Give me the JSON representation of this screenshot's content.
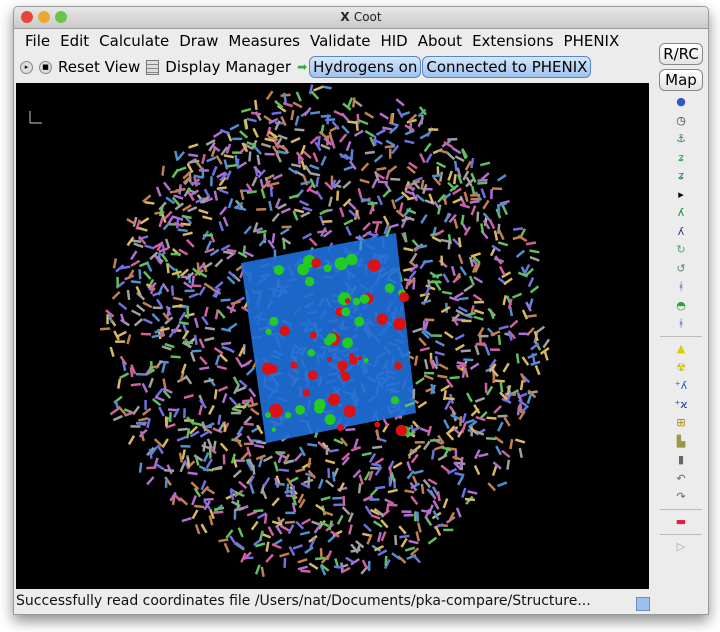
{
  "window": {
    "title": "Coot"
  },
  "menu": [
    "File",
    "Edit",
    "Calculate",
    "Draw",
    "Measures",
    "Validate",
    "HID",
    "About",
    "Extensions",
    "PHENIX"
  ],
  "toolbar": {
    "reset_view": "Reset View",
    "display_manager": "Display Manager",
    "hydrogens": "Hydrogens on",
    "phenix": "Connected to PHENIX"
  },
  "side": {
    "rrc": "R/RC",
    "map": "Map",
    "icons": [
      {
        "name": "refine-sphere-icon",
        "glyph": "●",
        "color": "#3355cc"
      },
      {
        "name": "clock-icon",
        "glyph": "◷",
        "color": "#333"
      },
      {
        "name": "anchor-icon",
        "glyph": "⚓",
        "color": "#2a7a6a"
      },
      {
        "name": "rigid-body-icon",
        "glyph": "ʑ",
        "color": "#22aa44"
      },
      {
        "name": "regularize-icon",
        "glyph": "ʑ",
        "color": "#2a7a6a"
      },
      {
        "name": "expand-arrow-icon",
        "glyph": "▸",
        "color": "#000"
      },
      {
        "name": "add-residue-icon",
        "glyph": "ʎ",
        "color": "#118833"
      },
      {
        "name": "mutate-icon",
        "glyph": "ʎ",
        "color": "#223399"
      },
      {
        "name": "rotamer-icon",
        "glyph": "↻",
        "color": "#44aa66"
      },
      {
        "name": "torsion-icon",
        "glyph": "↺",
        "color": "#668866"
      },
      {
        "name": "flip-peptide-icon",
        "glyph": "ᚼ",
        "color": "#2255bb"
      },
      {
        "name": "side-chain-icon",
        "glyph": "◓",
        "color": "#22aa33"
      },
      {
        "name": "cis-trans-icon",
        "glyph": "ᚼ",
        "color": "#2255bb"
      },
      {
        "name": "sep"
      },
      {
        "name": "add-water-icon",
        "glyph": "▲",
        "color": "#ddcc00"
      },
      {
        "name": "radiation-icon",
        "glyph": "☢",
        "color": "#ccbb00"
      },
      {
        "name": "add-atom-icon",
        "glyph": "⁺ʎ",
        "color": "#2255bb"
      },
      {
        "name": "delete-atom-icon",
        "glyph": "⁺ϰ",
        "color": "#223399"
      },
      {
        "name": "box-plus-icon",
        "glyph": "⊞",
        "color": "#aa8800"
      },
      {
        "name": "stamp-icon",
        "glyph": "▙",
        "color": "#999944"
      },
      {
        "name": "trash-icon",
        "glyph": "▮",
        "color": "#666"
      },
      {
        "name": "undo-icon",
        "glyph": "↶",
        "color": "#666"
      },
      {
        "name": "redo-icon",
        "glyph": "↷",
        "color": "#666"
      },
      {
        "name": "sep"
      },
      {
        "name": "flag-icon",
        "glyph": "▬",
        "color": "#dd2244"
      },
      {
        "name": "sep"
      },
      {
        "name": "play-icon",
        "glyph": "▷",
        "color": "#aaa"
      }
    ]
  },
  "status": "Successfully read coordinates file /Users/nat/Documents/pka-compare/Structure..."
}
